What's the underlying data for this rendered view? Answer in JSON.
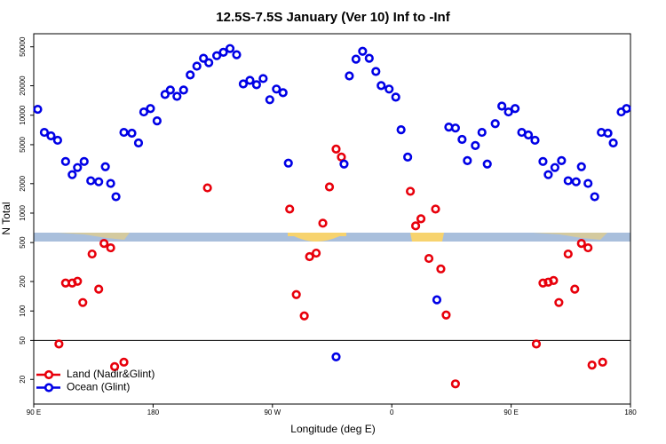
{
  "chart_data": {
    "type": "scatter",
    "title": "12.5S-7.5S January (Ver 10)   Inf to -Inf",
    "x_label": "Longitude (deg E)",
    "y_label": "N Total",
    "xlim": [
      90,
      540
    ],
    "ylim": [
      11.2,
      68000
    ],
    "log_y": true,
    "hline": 50,
    "legend": "bottom-left",
    "xticks": [
      {
        "value": 90,
        "label": "90 E"
      },
      180,
      {
        "value": 270,
        "label": "90 W"
      },
      {
        "value": 360,
        "label": "0"
      },
      {
        "value": 450,
        "label": "90 E"
      },
      {
        "value": 540,
        "label": "180"
      }
    ],
    "yticks": [
      20,
      50,
      100,
      200,
      500,
      1000,
      2000,
      5000,
      10000,
      20000,
      50000
    ],
    "series": [
      {
        "name": "Land (Nadir&Glint)",
        "color": "#e8000b",
        "x": [
          109,
          114,
          119,
          123,
          127,
          134,
          139,
          143,
          148,
          151,
          158,
          221,
          283,
          288,
          294,
          298,
          303,
          308,
          313,
          318,
          322,
          374,
          378,
          382,
          388,
          393,
          397,
          401,
          408,
          469,
          474,
          478,
          482,
          486,
          493,
          498,
          503,
          508,
          511,
          519
        ],
        "values": [
          46,
          193,
          193,
          201,
          122,
          382,
          167,
          490,
          442,
          27,
          30,
          1810,
          1100,
          147,
          89,
          359,
          390,
          789,
          1850,
          4510,
          3740,
          1670,
          741,
          875,
          344,
          1100,
          269,
          91,
          18,
          46,
          193,
          197,
          205,
          122,
          382,
          167,
          490,
          442,
          28,
          30
        ]
      },
      {
        "name": "Ocean (Glint)",
        "color": "#0000e6",
        "x": [
          93,
          98,
          103,
          108,
          114,
          119,
          123,
          128,
          133,
          139,
          144,
          148,
          152,
          158,
          164,
          169,
          173,
          178,
          183,
          189,
          193,
          198,
          203,
          208,
          213,
          218,
          222,
          228,
          233,
          238,
          243,
          248,
          253,
          258,
          263,
          268,
          273,
          278,
          282,
          318,
          324,
          328,
          333,
          338,
          343,
          348,
          352,
          358,
          363,
          367,
          372,
          394,
          403,
          408,
          413,
          417,
          423,
          428,
          432,
          438,
          443,
          448,
          453,
          458,
          463,
          468,
          474,
          478,
          483,
          488,
          493,
          499,
          503,
          508,
          513,
          518,
          523,
          527,
          533,
          537
        ],
        "values": [
          11500,
          6680,
          6150,
          5550,
          3370,
          2470,
          2920,
          3370,
          2140,
          2090,
          2980,
          2010,
          1470,
          6680,
          6550,
          5210,
          10800,
          11700,
          8750,
          16300,
          18100,
          15600,
          18100,
          25800,
          31700,
          38200,
          34400,
          40600,
          44000,
          48000,
          41500,
          20900,
          22700,
          20500,
          23700,
          14400,
          18500,
          17000,
          3240,
          34,
          3170,
          25200,
          37400,
          45000,
          38200,
          28000,
          20100,
          18500,
          15300,
          7100,
          3740,
          130,
          7560,
          7400,
          5660,
          3440,
          4900,
          6680,
          3170,
          8200,
          12400,
          10800,
          11700,
          6680,
          6280,
          5550,
          3370,
          2470,
          2920,
          3440,
          2140,
          2090,
          2980,
          2010,
          1470,
          6680,
          6550,
          5210,
          10800,
          11700
        ]
      }
    ]
  }
}
